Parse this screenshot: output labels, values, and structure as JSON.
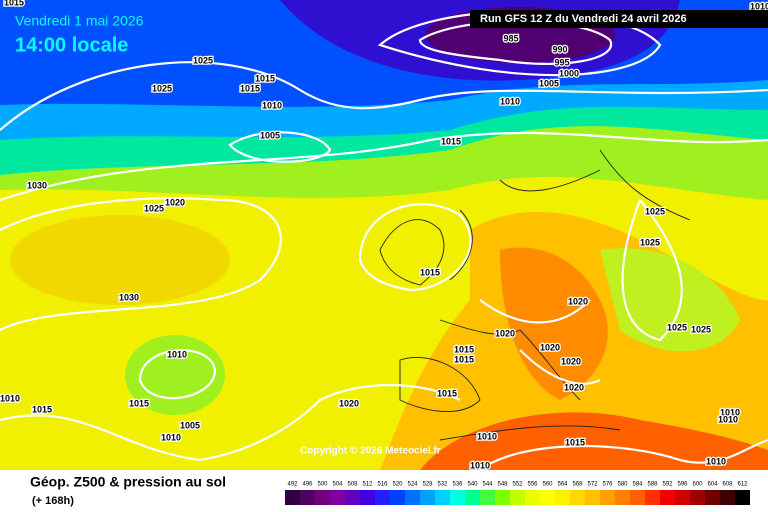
{
  "header": {
    "date": "Vendredi 1 mai 2026",
    "time": "14:00 locale",
    "run": "Run GFS 12 Z du Vendredi 24 avril 2026"
  },
  "copyright": "Copyright © 2026 Meteociel.fr",
  "footer": {
    "title": "Géop. Z500 & pression au sol",
    "lead": "(+ 168h)"
  },
  "isobar_labels": [
    1015,
    1025,
    1025,
    1015,
    1015,
    1010,
    1005,
    985,
    990,
    995,
    1000,
    1005,
    1010,
    1015,
    1030,
    1020,
    1025,
    1025,
    1025,
    1015,
    1030,
    1020,
    1020,
    1025,
    1025,
    1015,
    1015,
    1020,
    1020,
    1010,
    1020,
    1015,
    1010,
    1015,
    1015,
    1020,
    1010,
    1010,
    1005,
    1010,
    1010,
    1015,
    1010,
    1010,
    1010
  ],
  "scale": {
    "values": [
      492,
      496,
      500,
      504,
      508,
      512,
      516,
      520,
      524,
      528,
      532,
      536,
      540,
      544,
      548,
      552,
      556,
      560,
      564,
      568,
      572,
      576,
      580,
      584,
      588,
      592,
      596,
      600,
      604,
      608,
      612
    ],
    "colors": [
      "#300040",
      "#500060",
      "#700080",
      "#8000a0",
      "#6000c0",
      "#4000e0",
      "#2020ff",
      "#0040ff",
      "#0070ff",
      "#00a0ff",
      "#00d0ff",
      "#00ffe0",
      "#00ff90",
      "#40ff40",
      "#80ff00",
      "#c0ff00",
      "#e8ff00",
      "#ffff00",
      "#fff000",
      "#ffd800",
      "#ffc000",
      "#ffa000",
      "#ff8000",
      "#ff6000",
      "#ff3000",
      "#f00000",
      "#d00000",
      "#a00000",
      "#700000",
      "#400000",
      "#000000"
    ]
  }
}
